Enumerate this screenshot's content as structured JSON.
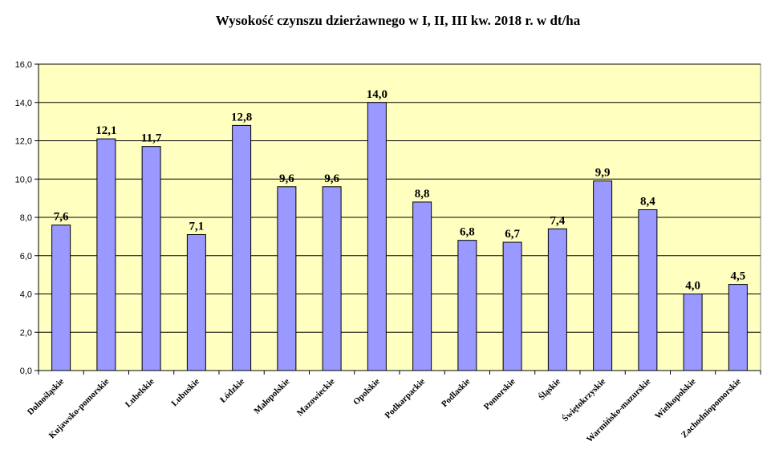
{
  "chart_data": {
    "type": "bar",
    "title": "Wysokość czynszu dzierżawnego w I, II, III kw. 2018 r. w dt/ha",
    "categories": [
      "Dolnośląskie",
      "Kujawsko-pomorskie",
      "Lubelskie",
      "Lubuskie",
      "Łódzkie",
      "Małopolskie",
      "Mazowieckie",
      "Opolskie",
      "Podkarpackie",
      "Podlaskie",
      "Pomorskie",
      "Śląskie",
      "Świętokrzyskie",
      "Warmińsko-mazurskie",
      "Wielkopolskie",
      "Zachodniopomorskie"
    ],
    "values": [
      7.6,
      12.1,
      11.7,
      7.1,
      12.8,
      9.6,
      9.6,
      14.0,
      8.8,
      6.8,
      6.7,
      7.4,
      9.9,
      8.4,
      4.0,
      4.5
    ],
    "value_labels": [
      "7,6",
      "12,1",
      "11,7",
      "7,1",
      "12,8",
      "9,6",
      "9,6",
      "14,0",
      "8,8",
      "6,8",
      "6,7",
      "7,4",
      "9,9",
      "8,4",
      "4,0",
      "4,5"
    ],
    "yticks": [
      "0,0",
      "2,0",
      "4,0",
      "6,0",
      "8,0",
      "10,0",
      "12,0",
      "14,0",
      "16,0"
    ],
    "ylim": [
      0,
      16
    ],
    "ytick_step": 2,
    "grid": true,
    "legend": false,
    "colors": {
      "plot_background": "#FFFFC0",
      "bar_fill": "#9999FF",
      "bar_stroke": "#000000",
      "grid": "#000000"
    }
  }
}
